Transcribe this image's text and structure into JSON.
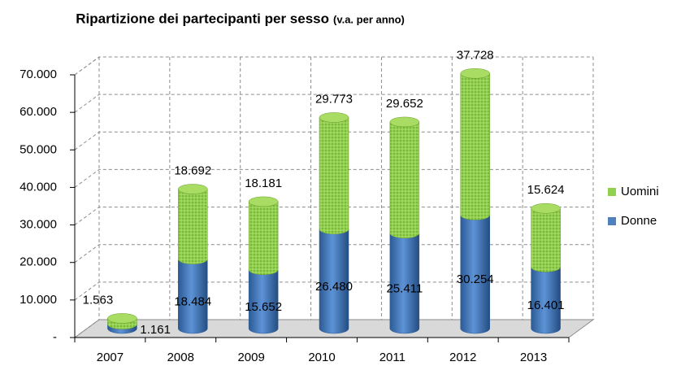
{
  "chart_data": {
    "type": "bar3d_stacked",
    "title": "Ripartizione dei partecipanti per sesso",
    "subtitle": "(v.a. per anno)",
    "categories": [
      "2007",
      "2008",
      "2009",
      "2010",
      "2011",
      "2012",
      "2013"
    ],
    "series": [
      {
        "name": "Donne",
        "color": "#4f81bd",
        "values": [
          1161,
          18484,
          15652,
          26480,
          25411,
          30254,
          16401
        ],
        "value_labels": [
          "1.161",
          "18.484",
          "15.652",
          "26.480",
          "25.411",
          "30.254",
          "16.401"
        ]
      },
      {
        "name": "Uomini",
        "color": "#92d050",
        "values": [
          1563,
          18692,
          18181,
          29773,
          29652,
          37728,
          15624
        ],
        "value_labels": [
          "1.563",
          "18.692",
          "18.181",
          "29.773",
          "29.652",
          "37.728",
          "15.624"
        ]
      }
    ],
    "ylim": [
      0,
      70000
    ],
    "yticks": [
      {
        "value": 0,
        "label": "-"
      },
      {
        "value": 10000,
        "label": "10.000"
      },
      {
        "value": 20000,
        "label": "20.000"
      },
      {
        "value": 30000,
        "label": "30.000"
      },
      {
        "value": 40000,
        "label": "40.000"
      },
      {
        "value": 50000,
        "label": "50.000"
      },
      {
        "value": 60000,
        "label": "60.000"
      },
      {
        "value": 70000,
        "label": "70.000"
      }
    ],
    "grid": true,
    "legend": "right"
  }
}
